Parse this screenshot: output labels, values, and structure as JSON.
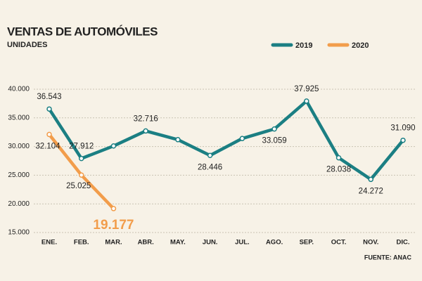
{
  "chart_data": {
    "type": "line",
    "title": "VENTAS DE AUTOMÓVILES",
    "subtitle": "UNIDADES",
    "source": "FUENTE: ANAC",
    "categories": [
      "ENE.",
      "FEB.",
      "MAR.",
      "ABR.",
      "MAY.",
      "JUN.",
      "JUL.",
      "AGO.",
      "SEP.",
      "OCT.",
      "NOV.",
      "DIC."
    ],
    "series": [
      {
        "name": "2019",
        "color": "#1b7f83",
        "values": [
          36543,
          27912,
          30100,
          32716,
          31200,
          28446,
          31400,
          33059,
          37925,
          28038,
          24272,
          31090
        ],
        "value_labels": [
          "36.543",
          "27.912",
          null,
          "32.716",
          null,
          "28.446",
          null,
          "33.059",
          "37.925",
          "28.038",
          "24.272",
          "31.090"
        ]
      },
      {
        "name": "2020",
        "color": "#f29d4b",
        "values": [
          32104,
          25025,
          19177,
          null,
          null,
          null,
          null,
          null,
          null,
          null,
          null,
          null
        ],
        "value_labels": [
          "32.104",
          "25.025",
          "19.177",
          null,
          null,
          null,
          null,
          null,
          null,
          null,
          null,
          null
        ]
      }
    ],
    "ylim": [
      15000,
      40000
    ],
    "yticks": [
      {
        "value": 15000,
        "label": "15.000"
      },
      {
        "value": 20000,
        "label": "20.000"
      },
      {
        "value": 25000,
        "label": "25.000"
      },
      {
        "value": 30000,
        "label": "30.000"
      },
      {
        "value": 35000,
        "label": "35.000"
      },
      {
        "value": 40000,
        "label": "40.000"
      }
    ],
    "grid": true,
    "legend": "top-right"
  }
}
